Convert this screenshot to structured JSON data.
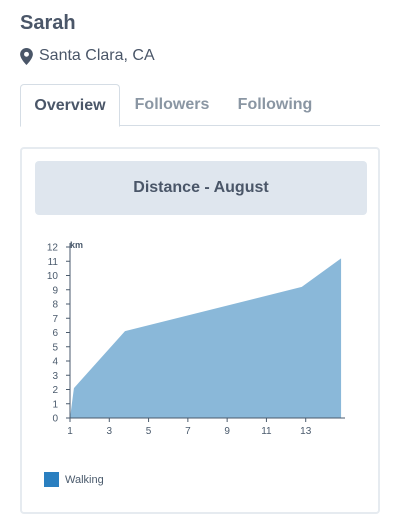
{
  "profile": {
    "name": "Sarah",
    "location": "Santa Clara, CA"
  },
  "tabs": [
    {
      "label": "Overview",
      "active": true
    },
    {
      "label": "Followers",
      "active": false
    },
    {
      "label": "Following",
      "active": false
    }
  ],
  "card": {
    "title": "Distance - August"
  },
  "colors": {
    "area_fill": "#8ab8d9",
    "legend_swatch": "#2a7fc0",
    "axis": "#4a5a6c"
  },
  "chart_data": {
    "type": "area",
    "title": "Distance - August",
    "ylabel": "km",
    "xlabel": "",
    "x_ticks": [
      1,
      3,
      5,
      7,
      9,
      11,
      13
    ],
    "y_ticks": [
      0,
      1,
      2,
      3,
      4,
      5,
      6,
      7,
      8,
      9,
      10,
      11,
      12
    ],
    "xlim": [
      1,
      15
    ],
    "ylim": [
      0,
      12
    ],
    "series": [
      {
        "name": "Walking",
        "x": [
          1,
          1.2,
          3.8,
          12.8,
          14.8
        ],
        "y": [
          0,
          2.1,
          6.1,
          9.2,
          11.2
        ]
      }
    ],
    "legend": [
      "Walking"
    ]
  }
}
